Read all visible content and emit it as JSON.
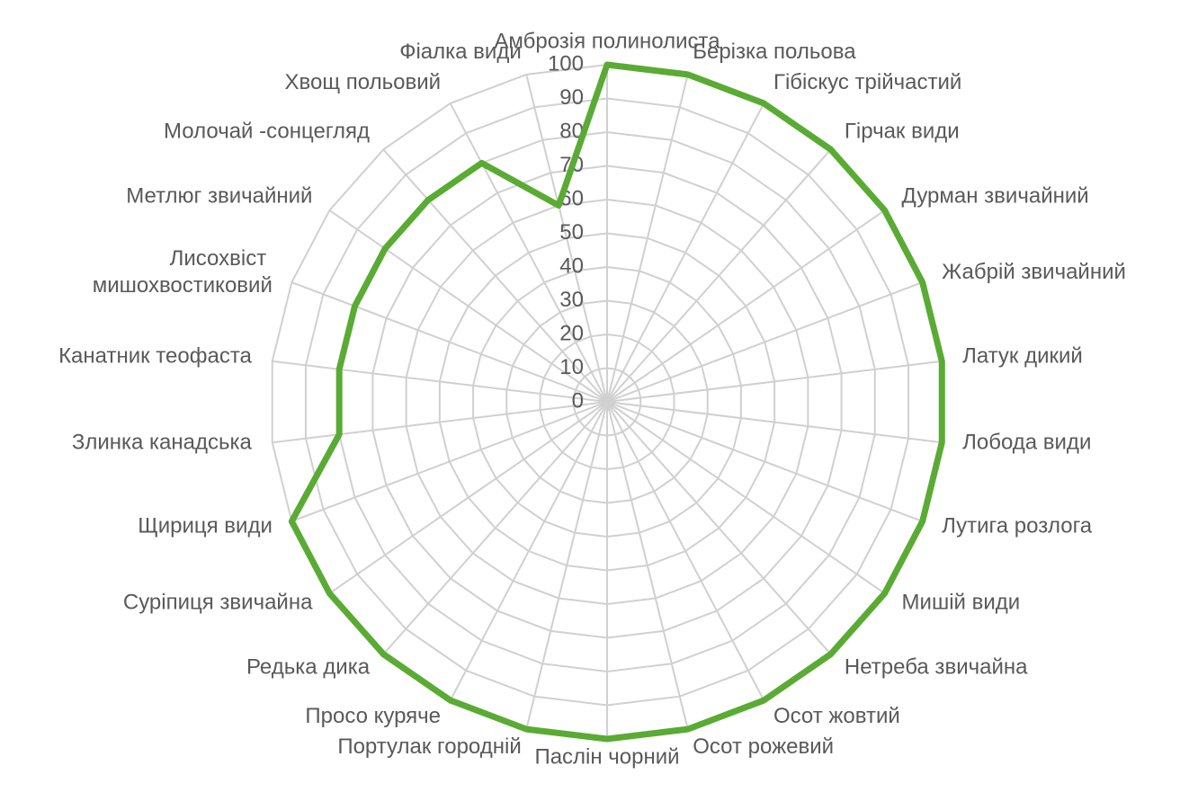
{
  "chart_data": {
    "type": "radar",
    "categories": [
      "Амброзія полинолиста",
      "Берізка польова",
      "Гібіскус трійчастий",
      "Гірчак види",
      "Дурман звичайний",
      "Жабрій звичайний",
      "Латук дикий",
      "Лобода види",
      "Лутига розлога",
      "Мишій види",
      "Нетреба звичайна",
      "Осот жовтий",
      "Осот рожевий",
      "Паслін чорний",
      "Портулак городній",
      "Просо куряче",
      "Редька дика",
      "Суріпиця звичайна",
      "Щириця види",
      "Злинка канадська",
      "Канатник теофаста",
      "Лисохвіст мишохвостиковий",
      "Метлюг звичайний",
      "Молочай -сонцегляд",
      "Хвощ польовий",
      "Фіалка види"
    ],
    "values": [
      100,
      100,
      100,
      100,
      100,
      100,
      100,
      100,
      100,
      100,
      100,
      100,
      100,
      100,
      100,
      100,
      100,
      100,
      100,
      80,
      80,
      80,
      80,
      80,
      80,
      60
    ],
    "color": "#5aab34",
    "ylim": [
      0,
      100
    ],
    "yticks": [
      0,
      10,
      20,
      30,
      40,
      50,
      60,
      70,
      80,
      90,
      100
    ],
    "grid": true
  }
}
